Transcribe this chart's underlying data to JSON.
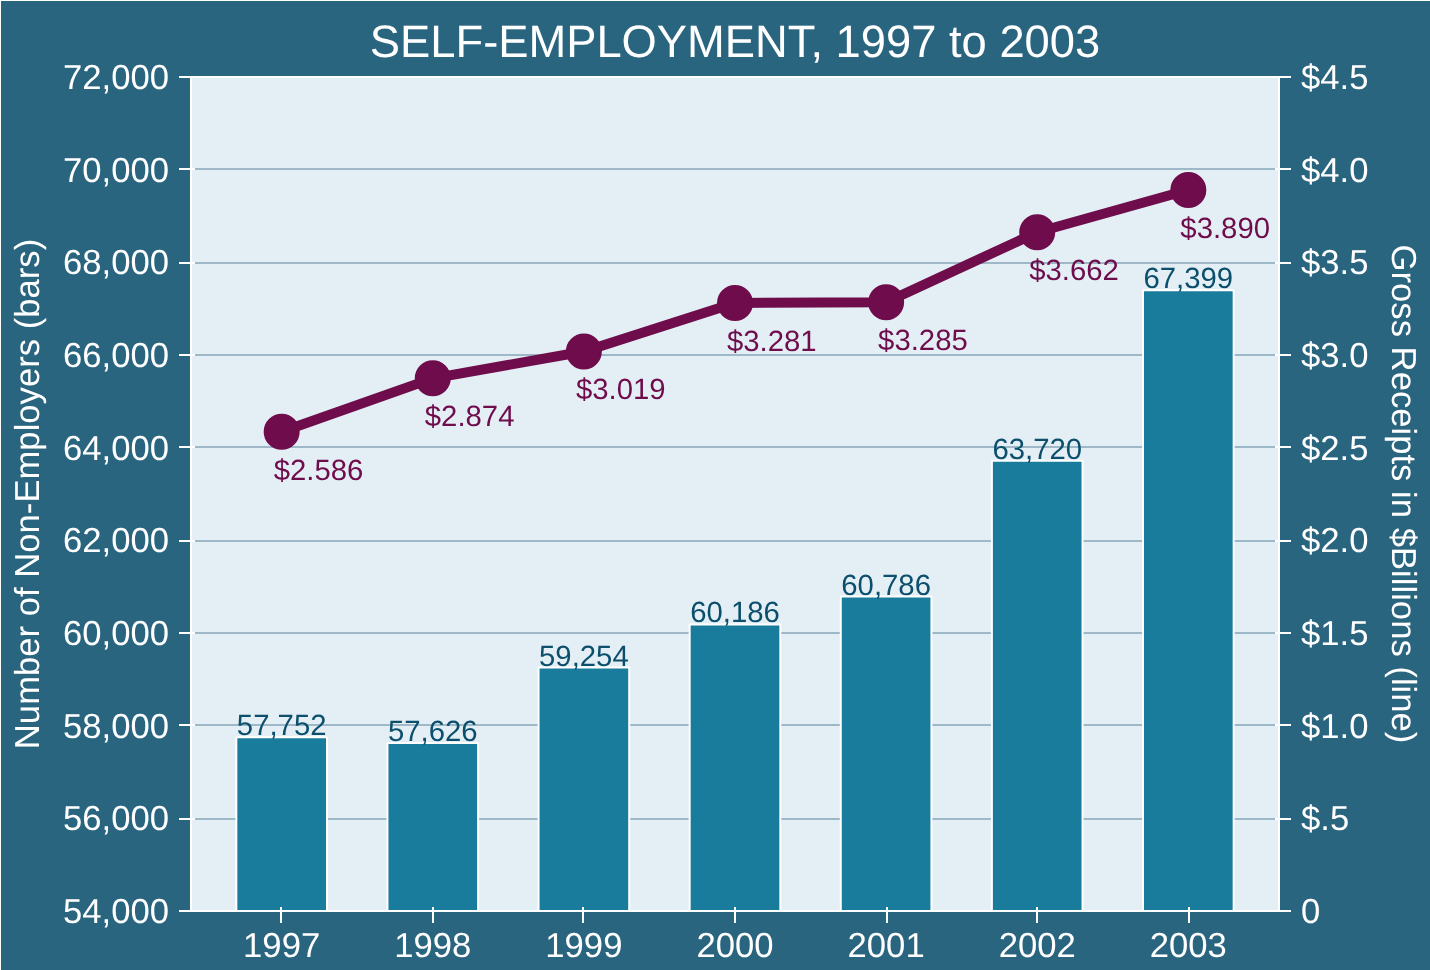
{
  "chart_data": {
    "type": "bar",
    "title": "SELF-EMPLOYMENT, 1997 to 2003",
    "ylabel": "Number of Non-Employers (bars)",
    "y2label": "Gross Receipts in $Billions (line)",
    "categories": [
      "1997",
      "1998",
      "1999",
      "2000",
      "2001",
      "2002",
      "2003"
    ],
    "series": [
      {
        "color": "#1a7c9c",
        "values": [
          57752,
          57626,
          59254,
          60186,
          60786,
          63720,
          67399
        ],
        "value_labels": [
          "57,752",
          "57,626",
          "59,254",
          "60,186",
          "60,786",
          "63,720",
          "67,399"
        ]
      },
      {
        "type": "line",
        "axis": "y2",
        "color": "#6e0c4c",
        "marker": "circle",
        "values": [
          2.586,
          2.874,
          3.019,
          3.281,
          3.285,
          3.662,
          3.89
        ],
        "value_labels": [
          "$2.586",
          "$2.874",
          "$3.019",
          "$3.281",
          "$3.285",
          "$3.662",
          "$3.890"
        ]
      }
    ],
    "ylim": [
      54000,
      72000
    ],
    "yticks": [
      {
        "value": 54000,
        "label": "54,000"
      },
      {
        "value": 56000,
        "label": "56,000"
      },
      {
        "value": 58000,
        "label": "58,000"
      },
      {
        "value": 60000,
        "label": "60,000"
      },
      {
        "value": 62000,
        "label": "62,000"
      },
      {
        "value": 64000,
        "label": "64,000"
      },
      {
        "value": 66000,
        "label": "66,000"
      },
      {
        "value": 68000,
        "label": "68,000"
      },
      {
        "value": 70000,
        "label": "70,000"
      },
      {
        "value": 72000,
        "label": "72,000"
      }
    ],
    "y2lim": [
      0,
      4.5
    ],
    "y2ticks": [
      0,
      {
        "value": 0.5,
        "label": "$.5"
      },
      {
        "value": 1.0,
        "label": "$1.0"
      },
      {
        "value": 1.5,
        "label": "$1.5"
      },
      {
        "value": 2.0,
        "label": "$2.0"
      },
      {
        "value": 2.5,
        "label": "$2.5"
      },
      {
        "value": 3.0,
        "label": "$3.0"
      },
      {
        "value": 3.5,
        "label": "$3.5"
      },
      {
        "value": 4.0,
        "label": "$4.0"
      },
      {
        "value": 4.5,
        "label": "$4.5"
      }
    ],
    "grid": "y"
  }
}
